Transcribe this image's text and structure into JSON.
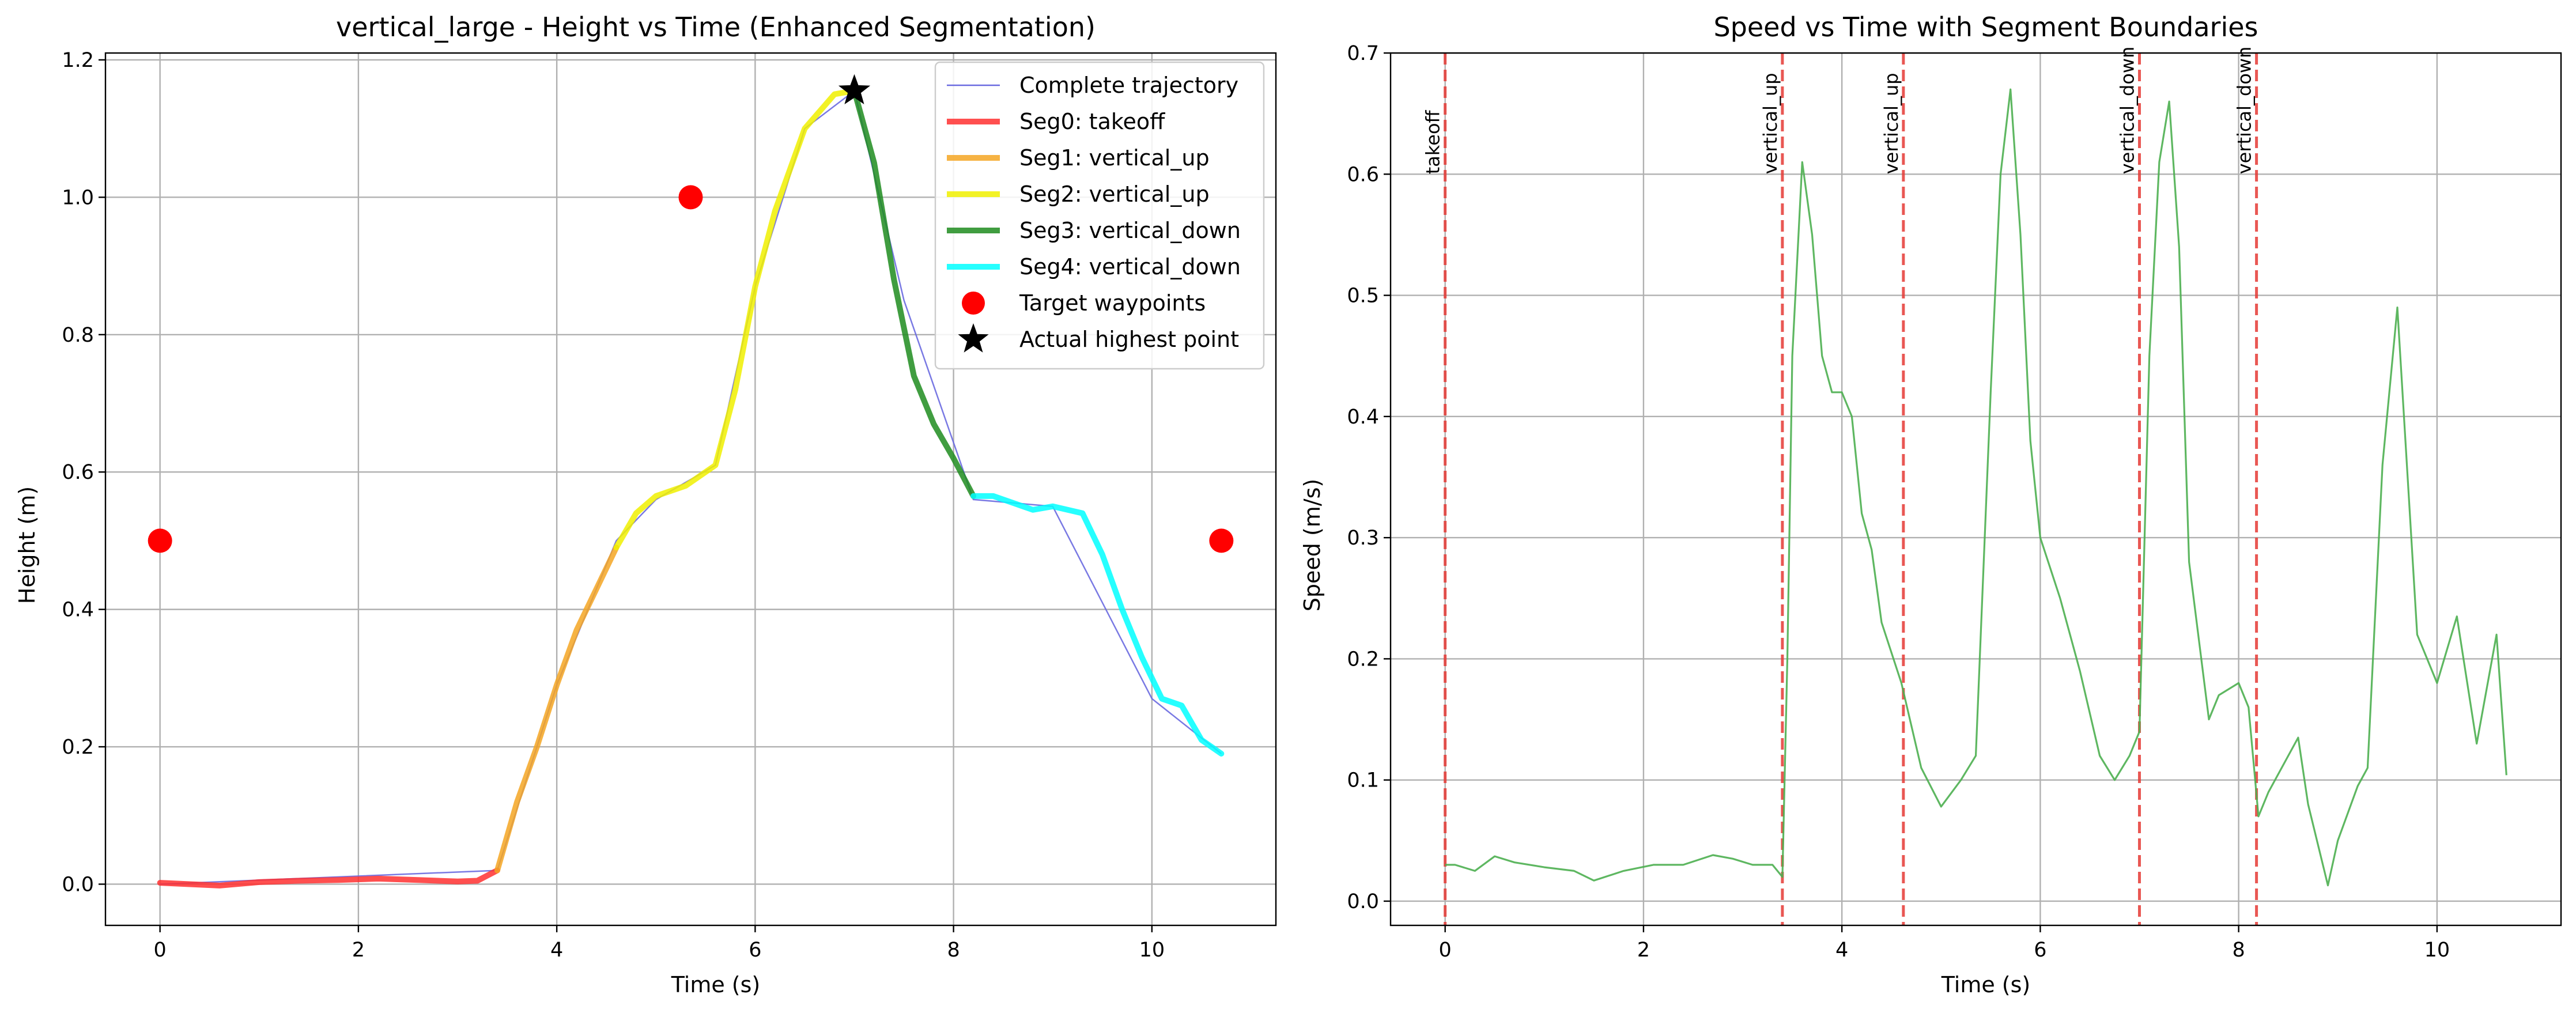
{
  "figure": {
    "background": "#ffffff"
  },
  "chart_data": [
    {
      "type": "line",
      "title": "vertical_large - Height vs Time (Enhanced Segmentation)",
      "xlabel": "Time (s)",
      "ylabel": "Height (m)",
      "xlim": [
        -0.55,
        11.25
      ],
      "ylim": [
        -0.06,
        1.21
      ],
      "xticks": [
        0,
        2,
        4,
        6,
        8,
        10
      ],
      "xtick_labels": [
        "0",
        "2",
        "4",
        "6",
        "8",
        "10"
      ],
      "yticks": [
        0.0,
        0.2,
        0.4,
        0.6,
        0.8,
        1.0,
        1.2
      ],
      "ytick_labels": [
        "0.0",
        "0.2",
        "0.4",
        "0.6",
        "0.8",
        "1.0",
        "1.2"
      ],
      "grid": true,
      "legend_position": "upper right",
      "series": [
        {
          "name": "Complete trajectory",
          "color": "#6a6ae0",
          "kind": "thin-line",
          "x": [
            0.0,
            3.4,
            4.0,
            4.6,
            5.0,
            5.6,
            6.0,
            6.5,
            7.0,
            7.5,
            8.2,
            9.0,
            10.0,
            10.7
          ],
          "y": [
            0.0,
            0.02,
            0.29,
            0.5,
            0.56,
            0.61,
            0.87,
            1.1,
            1.155,
            0.85,
            0.56,
            0.55,
            0.27,
            0.19
          ]
        },
        {
          "name": "Seg0: takeoff",
          "color": "#ff3030",
          "kind": "segment",
          "x": [
            0.0,
            0.3,
            0.6,
            1.0,
            1.4,
            1.8,
            2.2,
            2.6,
            3.0,
            3.2,
            3.4
          ],
          "y": [
            0.002,
            0.0,
            -0.002,
            0.003,
            0.005,
            0.006,
            0.008,
            0.006,
            0.004,
            0.005,
            0.02
          ]
        },
        {
          "name": "Seg1: vertical_up",
          "color": "#f5a623",
          "kind": "segment",
          "x": [
            3.4,
            3.6,
            3.8,
            4.0,
            4.2,
            4.4,
            4.6
          ],
          "y": [
            0.02,
            0.12,
            0.2,
            0.29,
            0.37,
            0.43,
            0.49
          ]
        },
        {
          "name": "Seg2: vertical_up",
          "color": "#f0f000",
          "kind": "segment",
          "x": [
            4.6,
            4.8,
            5.0,
            5.3,
            5.6,
            5.8,
            6.0,
            6.2,
            6.5,
            6.8,
            7.0
          ],
          "y": [
            0.49,
            0.54,
            0.565,
            0.58,
            0.61,
            0.72,
            0.87,
            0.98,
            1.1,
            1.15,
            1.155
          ]
        },
        {
          "name": "Seg3: vertical_down",
          "color": "#1e8c1e",
          "kind": "segment",
          "x": [
            7.0,
            7.2,
            7.4,
            7.6,
            7.8,
            8.0,
            8.2
          ],
          "y": [
            1.155,
            1.05,
            0.88,
            0.74,
            0.67,
            0.62,
            0.565
          ]
        },
        {
          "name": "Seg4: vertical_down",
          "color": "#00ffff",
          "kind": "segment",
          "x": [
            8.2,
            8.4,
            8.6,
            8.8,
            9.0,
            9.3,
            9.5,
            9.7,
            9.9,
            10.1,
            10.3,
            10.5,
            10.7
          ],
          "y": [
            0.565,
            0.565,
            0.555,
            0.545,
            0.55,
            0.54,
            0.48,
            0.4,
            0.33,
            0.27,
            0.26,
            0.21,
            0.19
          ]
        },
        {
          "name": "Target waypoints",
          "color": "#ff0000",
          "kind": "marker-circle",
          "x": [
            0.0,
            5.35,
            10.7
          ],
          "y": [
            0.5,
            1.0,
            0.5
          ]
        },
        {
          "name": "Actual highest point",
          "color": "#000000",
          "kind": "marker-star",
          "x": [
            7.0
          ],
          "y": [
            1.155
          ]
        }
      ]
    },
    {
      "type": "line",
      "title": "Speed vs Time with Segment Boundaries",
      "xlabel": "Time (s)",
      "ylabel": "Speed (m/s)",
      "xlim": [
        -0.55,
        11.25
      ],
      "ylim": [
        -0.02,
        0.7
      ],
      "xticks": [
        0,
        2,
        4,
        6,
        8,
        10
      ],
      "xtick_labels": [
        "0",
        "2",
        "4",
        "6",
        "8",
        "10"
      ],
      "yticks": [
        0.0,
        0.1,
        0.2,
        0.3,
        0.4,
        0.5,
        0.6,
        0.7
      ],
      "ytick_labels": [
        "0.0",
        "0.1",
        "0.2",
        "0.3",
        "0.4",
        "0.5",
        "0.6",
        "0.7"
      ],
      "grid": true,
      "series": [
        {
          "color": "#4caf50",
          "x": [
            0.0,
            0.1,
            0.3,
            0.5,
            0.7,
            1.0,
            1.3,
            1.5,
            1.8,
            2.1,
            2.4,
            2.7,
            2.9,
            3.1,
            3.3,
            3.4,
            3.45,
            3.5,
            3.6,
            3.7,
            3.8,
            3.9,
            4.0,
            4.1,
            4.2,
            4.3,
            4.4,
            4.6,
            4.8,
            5.0,
            5.2,
            5.35,
            5.5,
            5.6,
            5.7,
            5.8,
            5.9,
            6.0,
            6.2,
            6.4,
            6.6,
            6.75,
            6.9,
            7.0,
            7.1,
            7.2,
            7.3,
            7.4,
            7.5,
            7.7,
            7.8,
            8.0,
            8.1,
            8.2,
            8.3,
            8.5,
            8.6,
            8.7,
            8.9,
            9.0,
            9.2,
            9.3,
            9.45,
            9.6,
            9.8,
            10.0,
            10.2,
            10.4,
            10.6,
            10.7
          ],
          "y": [
            0.03,
            0.03,
            0.025,
            0.037,
            0.032,
            0.028,
            0.025,
            0.017,
            0.025,
            0.03,
            0.03,
            0.038,
            0.035,
            0.03,
            0.03,
            0.02,
            0.2,
            0.45,
            0.61,
            0.55,
            0.45,
            0.42,
            0.42,
            0.4,
            0.32,
            0.29,
            0.23,
            0.18,
            0.11,
            0.078,
            0.1,
            0.12,
            0.42,
            0.6,
            0.67,
            0.55,
            0.38,
            0.3,
            0.25,
            0.19,
            0.12,
            0.1,
            0.12,
            0.14,
            0.45,
            0.61,
            0.66,
            0.54,
            0.28,
            0.15,
            0.17,
            0.18,
            0.16,
            0.07,
            0.09,
            0.12,
            0.135,
            0.08,
            0.013,
            0.05,
            0.095,
            0.11,
            0.36,
            0.49,
            0.22,
            0.18,
            0.235,
            0.13,
            0.22,
            0.104
          ]
        }
      ],
      "boundaries": [
        {
          "x": 0.0,
          "label": "takeoff"
        },
        {
          "x": 3.4,
          "label": "vertical_up"
        },
        {
          "x": 4.62,
          "label": "vertical_up"
        },
        {
          "x": 7.0,
          "label": "vertical_down"
        },
        {
          "x": 8.18,
          "label": "vertical_down"
        }
      ],
      "boundary_color": "#e53935",
      "boundary_label_y": 0.6
    }
  ]
}
